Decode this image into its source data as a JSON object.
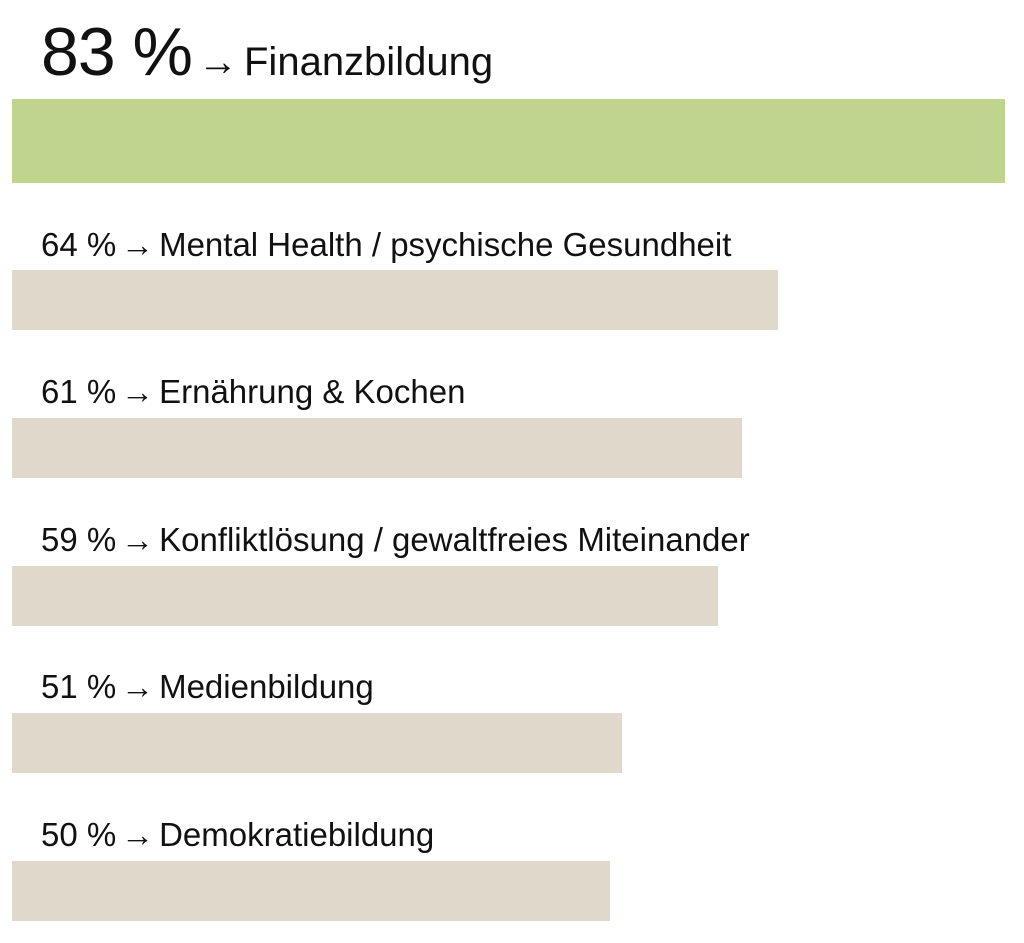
{
  "chart_data": {
    "type": "bar",
    "orientation": "horizontal",
    "value_suffix": " %",
    "arrow": "→",
    "grid": false,
    "legend": false,
    "xlim": [
      0,
      83
    ],
    "bars": [
      {
        "value": 83,
        "label": "83 %",
        "category": "Finanzbildung",
        "color": "#bfd48c",
        "highlight": true
      },
      {
        "value": 64,
        "label": "64 %",
        "category": "Mental Health / psychische Gesundheit",
        "color": "#e0d9cb",
        "highlight": false
      },
      {
        "value": 61,
        "label": "61 %",
        "category": "Ernährung & Kochen",
        "color": "#e0d9cb",
        "highlight": false
      },
      {
        "value": 59,
        "label": "59 %",
        "category": "Konfliktlösung / gewaltfreies Miteinander",
        "color": "#e0d9cb",
        "highlight": false
      },
      {
        "value": 51,
        "label": "51 %",
        "category": "Medienbildung",
        "color": "#e0d9cb",
        "highlight": false
      },
      {
        "value": 50,
        "label": "50 %",
        "category": "Demokratiebildung",
        "color": "#e0d9cb",
        "highlight": false
      }
    ]
  }
}
